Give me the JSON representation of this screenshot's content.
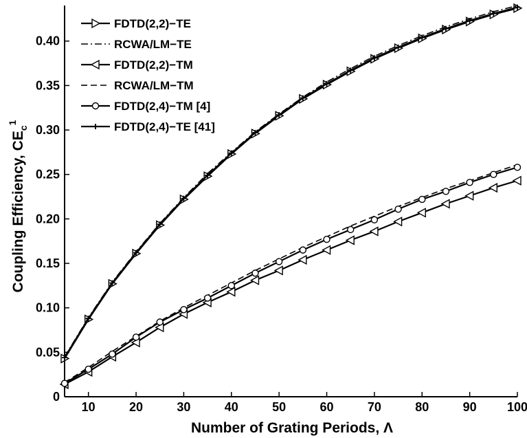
{
  "chart_data": {
    "type": "line",
    "xlabel": "Number of Grating Periods, Λ",
    "ylabel_main": "Coupling Efficiency, CE",
    "ylabel_sup": "1",
    "ylabel_sub": "c",
    "xlim": [
      5,
      100
    ],
    "ylim": [
      0,
      0.44
    ],
    "xticks": [
      10,
      20,
      30,
      40,
      50,
      60,
      70,
      80,
      90,
      100
    ],
    "yticks": [
      0,
      0.05,
      0.1,
      0.15,
      0.2,
      0.25,
      0.3,
      0.35,
      0.4
    ],
    "ytick_labels": [
      "0",
      "0.05",
      "0.10",
      "0.15",
      "0.20",
      "0.25",
      "0.30",
      "0.35",
      "0.40"
    ],
    "grid": false,
    "legend_position": "top-left",
    "x": [
      5,
      10,
      15,
      20,
      25,
      30,
      35,
      40,
      45,
      50,
      55,
      60,
      65,
      70,
      75,
      80,
      85,
      90,
      95,
      100
    ],
    "series": [
      {
        "name": "FDTD(2,2)−TE",
        "style": "solid",
        "marker": "triangle-right",
        "values": [
          0.043,
          0.087,
          0.127,
          0.161,
          0.193,
          0.222,
          0.248,
          0.273,
          0.296,
          0.316,
          0.335,
          0.351,
          0.366,
          0.38,
          0.392,
          0.403,
          0.413,
          0.422,
          0.43,
          0.437
        ]
      },
      {
        "name": "RCWA/LM−TE",
        "style": "dashdot",
        "marker": "none",
        "values": [
          0.045,
          0.089,
          0.129,
          0.163,
          0.195,
          0.224,
          0.251,
          0.275,
          0.298,
          0.318,
          0.337,
          0.354,
          0.369,
          0.383,
          0.395,
          0.406,
          0.416,
          0.425,
          0.433,
          0.44
        ]
      },
      {
        "name": "FDTD(2,2)−TM",
        "style": "solid",
        "marker": "triangle-left",
        "values": [
          0.014,
          0.028,
          0.045,
          0.061,
          0.078,
          0.093,
          0.106,
          0.118,
          0.131,
          0.142,
          0.154,
          0.165,
          0.176,
          0.186,
          0.197,
          0.207,
          0.217,
          0.226,
          0.235,
          0.243
        ]
      },
      {
        "name": "RCWA/LM−TM",
        "style": "dashed",
        "marker": "none",
        "values": [
          0.016,
          0.033,
          0.051,
          0.068,
          0.085,
          0.1,
          0.114,
          0.128,
          0.142,
          0.155,
          0.168,
          0.18,
          0.192,
          0.203,
          0.214,
          0.224,
          0.234,
          0.243,
          0.252,
          0.261
        ]
      },
      {
        "name": "FDTD(2,4)−TM [4]",
        "style": "solid",
        "marker": "circle",
        "values": [
          0.015,
          0.031,
          0.048,
          0.067,
          0.084,
          0.098,
          0.111,
          0.125,
          0.139,
          0.152,
          0.165,
          0.177,
          0.188,
          0.199,
          0.211,
          0.222,
          0.231,
          0.241,
          0.25,
          0.258
        ]
      },
      {
        "name": "FDTD(2,4)−TE [41]",
        "style": "solid",
        "marker": "plus",
        "values": [
          0.044,
          0.088,
          0.128,
          0.162,
          0.194,
          0.223,
          0.249,
          0.274,
          0.297,
          0.317,
          0.336,
          0.352,
          0.367,
          0.381,
          0.393,
          0.404,
          0.414,
          0.423,
          0.431,
          0.438
        ]
      }
    ]
  }
}
